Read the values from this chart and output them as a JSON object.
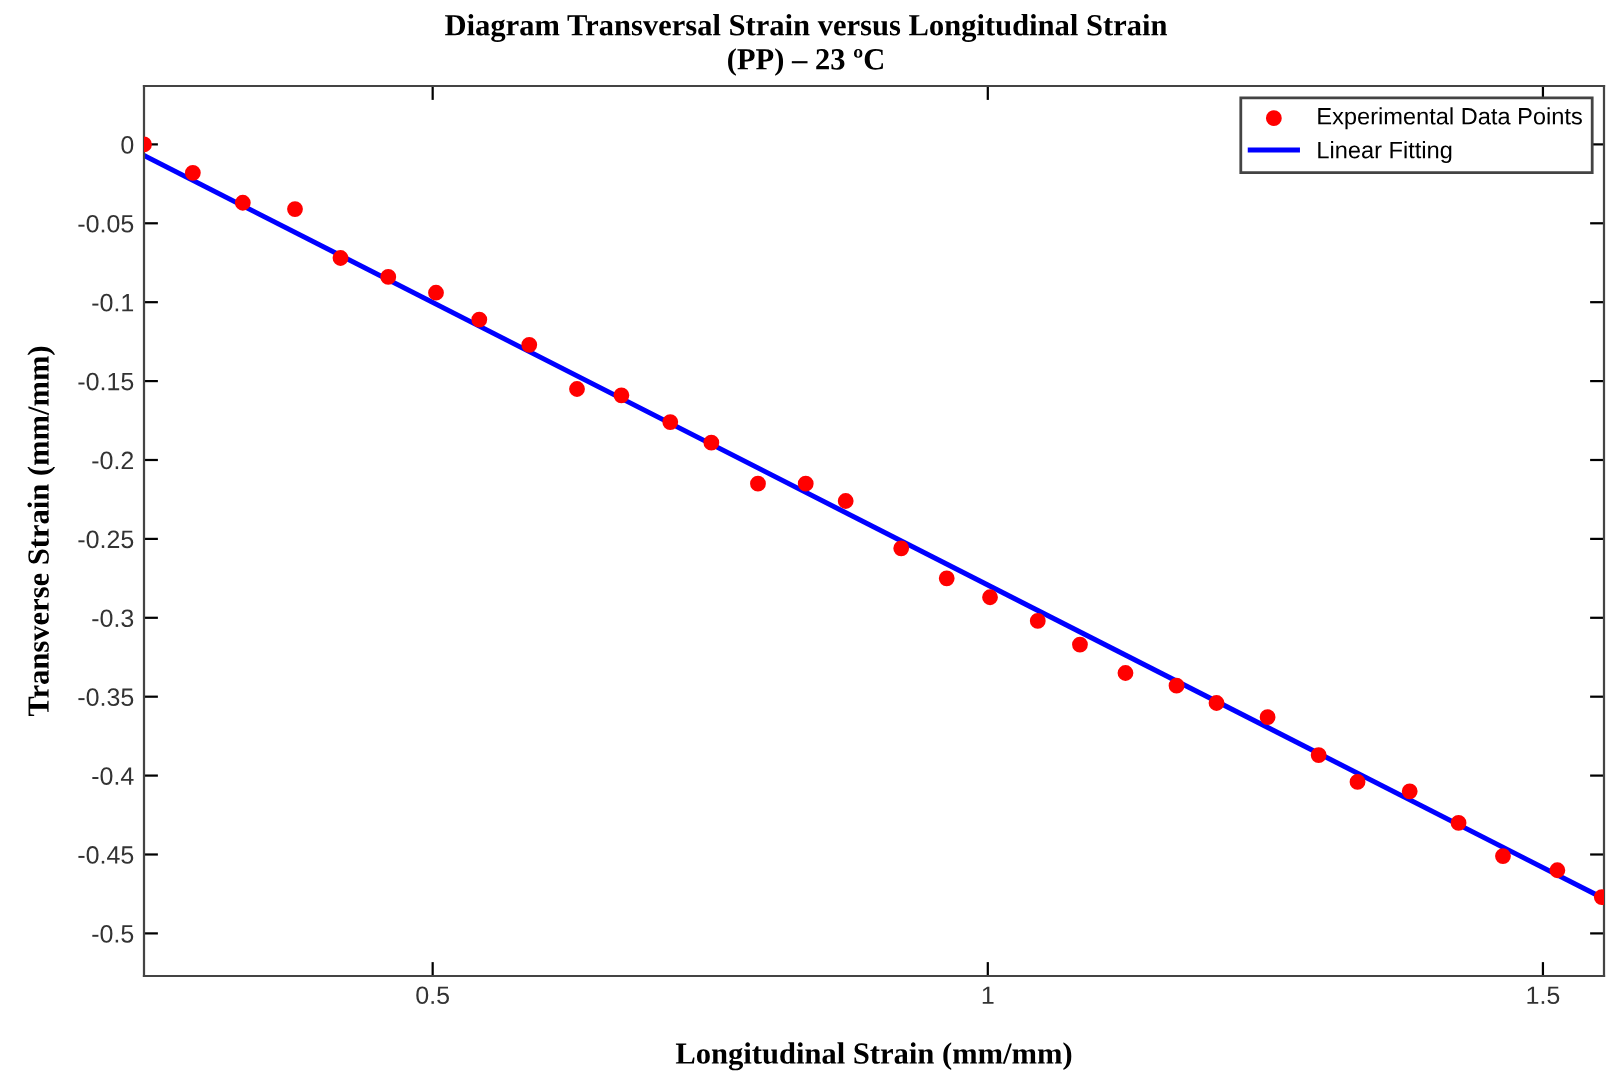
{
  "chart_data": {
    "type": "scatter",
    "title": "Diagram Transversal Strain versus Longitudinal Strain",
    "subtitle": "(PP) – 23 ºC",
    "xlabel": "Longitudinal Strain (mm/mm)",
    "ylabel": "Transverse Strain (mm/mm)",
    "xlim": [
      0.24,
      1.555
    ],
    "ylim": [
      -0.527,
      0.037
    ],
    "xticks": [
      0.5,
      1,
      1.5
    ],
    "yticks": [
      0,
      -0.05,
      -0.1,
      -0.15,
      -0.2,
      -0.25,
      -0.3,
      -0.35,
      -0.4,
      -0.45,
      -0.5
    ],
    "legend": "top right",
    "grid": false,
    "series": [
      {
        "name": "Experimental Data Points",
        "marker": "circle",
        "color": "#ff0000",
        "x": [
          0.24,
          0.284,
          0.329,
          0.376,
          0.417,
          0.46,
          0.503,
          0.542,
          0.587,
          0.63,
          0.67,
          0.714,
          0.751,
          0.793,
          0.836,
          0.872,
          0.922,
          0.963,
          1.002,
          1.045,
          1.083,
          1.124,
          1.17,
          1.206,
          1.252,
          1.298,
          1.333,
          1.38,
          1.424,
          1.464,
          1.513,
          1.553
        ],
        "values": [
          0.0,
          -0.018,
          -0.037,
          -0.041,
          -0.072,
          -0.084,
          -0.094,
          -0.111,
          -0.127,
          -0.155,
          -0.159,
          -0.176,
          -0.189,
          -0.215,
          -0.215,
          -0.226,
          -0.256,
          -0.275,
          -0.287,
          -0.302,
          -0.317,
          -0.335,
          -0.343,
          -0.354,
          -0.363,
          -0.387,
          -0.404,
          -0.41,
          -0.43,
          -0.451,
          -0.46,
          -0.477
        ]
      },
      {
        "name": "Linear Fitting",
        "type": "line",
        "line_style": "solid",
        "color": "#0000ff",
        "x": [
          0.24,
          1.555
        ],
        "values": [
          -0.007,
          -0.478
        ]
      }
    ]
  }
}
